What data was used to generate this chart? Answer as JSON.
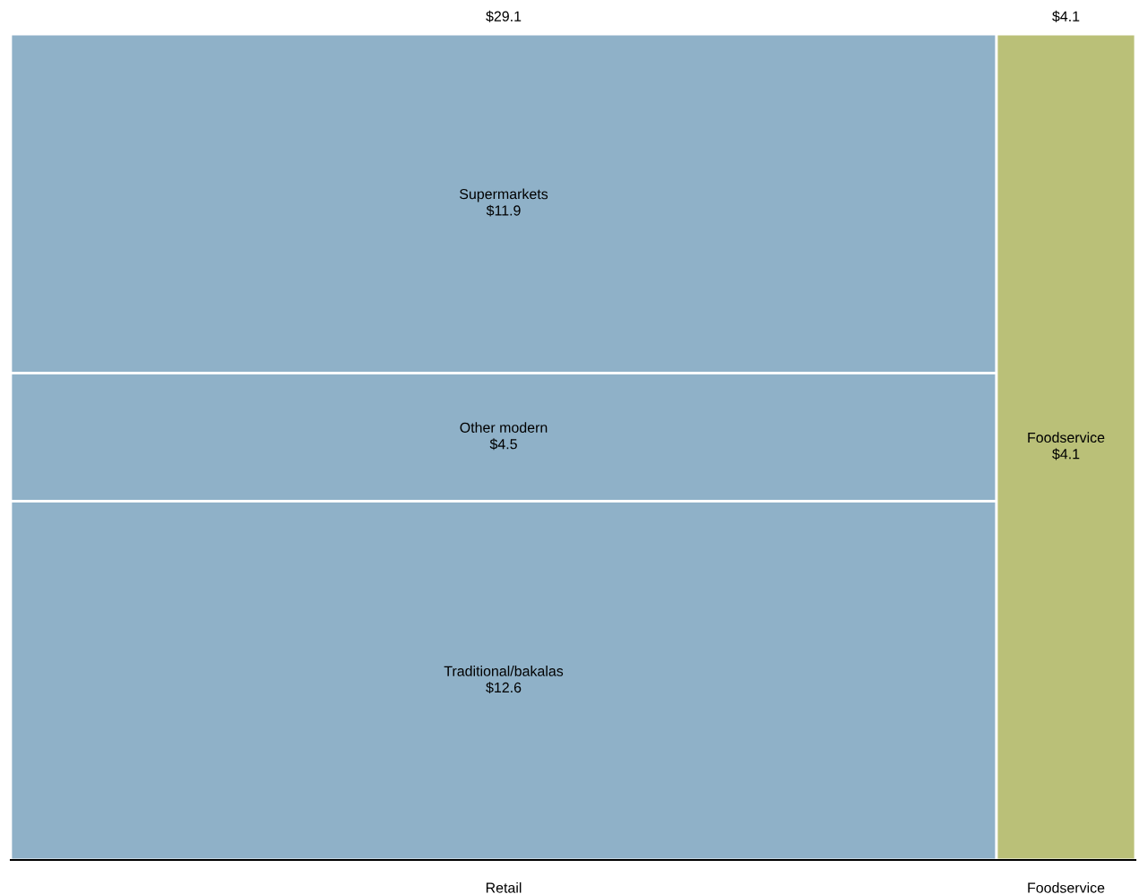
{
  "chart_data": {
    "type": "other",
    "categories": [
      "Retail",
      "Foodservice"
    ],
    "values": [
      29.1,
      4.1
    ],
    "value_labels": [
      "$29.1",
      "$4.1"
    ],
    "series": [
      {
        "name": "Traditional/bakalas",
        "color": "#8fb1c8",
        "values": [
          12.6,
          null
        ],
        "value_labels": [
          "$12.6",
          null
        ]
      },
      {
        "name": "Other modern",
        "color": "#8fb1c8",
        "values": [
          4.5,
          null
        ],
        "value_labels": [
          "$4.5",
          null
        ]
      },
      {
        "name": "Supermarkets",
        "color": "#8fb1c8",
        "values": [
          11.9,
          null
        ],
        "value_labels": [
          "$11.9",
          null
        ]
      },
      {
        "name": "Foodservice",
        "color": "#bac078",
        "values": [
          null,
          4.1
        ],
        "value_labels": [
          null,
          "$4.1"
        ]
      }
    ],
    "legend": false
  }
}
